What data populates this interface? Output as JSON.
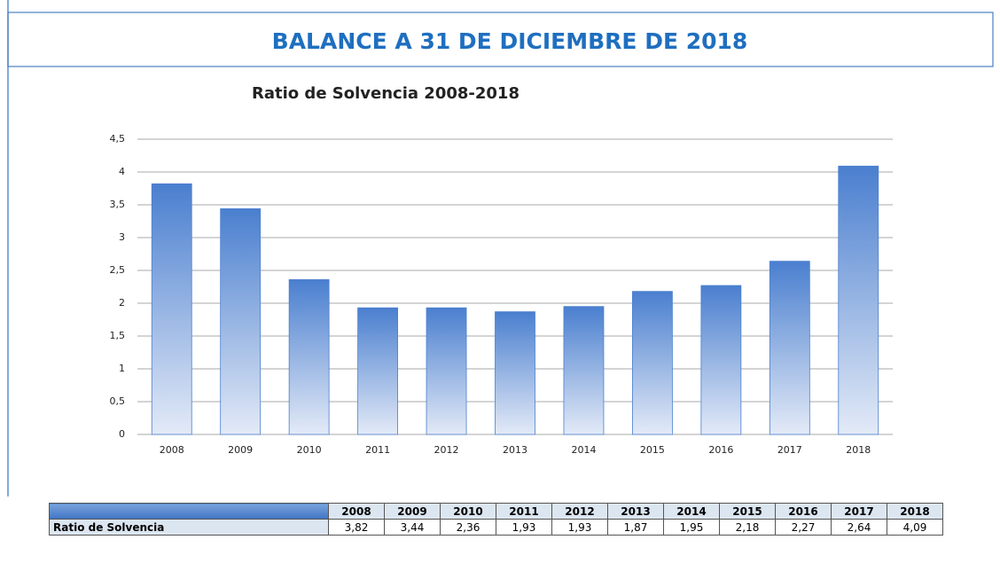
{
  "header": {
    "title": "BALANCE A 31 DE DICIEMBRE DE 2018"
  },
  "chart_data": {
    "type": "bar",
    "title": "Ratio de Solvencia 2008-2018",
    "categories": [
      "2008",
      "2009",
      "2010",
      "2011",
      "2012",
      "2013",
      "2014",
      "2015",
      "2016",
      "2017",
      "2018"
    ],
    "series": [
      {
        "name": "Ratio de Solvencia",
        "color": "#4a7fcf",
        "values": [
          3.82,
          3.44,
          2.36,
          1.93,
          1.93,
          1.87,
          1.95,
          2.18,
          2.27,
          2.64,
          4.09
        ],
        "value_labels": [
          "3,82",
          "3,44",
          "2,36",
          "1,93",
          "1,93",
          "1,87",
          "1,95",
          "2,18",
          "2,27",
          "2,64",
          "4,09"
        ]
      }
    ],
    "ylim": [
      0,
      4.5
    ],
    "yticks": [
      0,
      {
        "value": 0.5,
        "label": "0,5"
      },
      1,
      {
        "value": 1.5,
        "label": "1,5"
      },
      2,
      {
        "value": 2.5,
        "label": "2,5"
      },
      3,
      {
        "value": 3.5,
        "label": "3,5"
      },
      4,
      {
        "value": 4.5,
        "label": "4,5"
      }
    ],
    "grid": true
  }
}
